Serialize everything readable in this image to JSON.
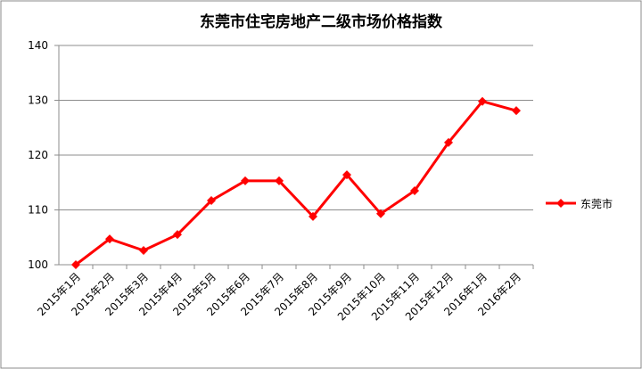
{
  "chart_data": {
    "type": "line",
    "title": "东莞市住宅房地产二级市场价格指数",
    "categories": [
      "2015年1月",
      "2015年2月",
      "2015年3月",
      "2015年4月",
      "2015年5月",
      "2015年6月",
      "2015年7月",
      "2015年8月",
      "2015年9月",
      "2015年10月",
      "2015年11月",
      "2015年12月",
      "2016年1月",
      "2016年2月"
    ],
    "series": [
      {
        "name": "东莞市",
        "color": "#ff0000",
        "values": [
          100,
          104.7,
          102.6,
          105.5,
          111.7,
          115.3,
          115.3,
          108.8,
          116.4,
          109.3,
          113.5,
          122.3,
          129.8,
          128.1
        ]
      }
    ],
    "ylim": [
      100,
      140
    ],
    "yticks": [
      100,
      110,
      120,
      130,
      140
    ],
    "grid": true,
    "legend": "right"
  }
}
